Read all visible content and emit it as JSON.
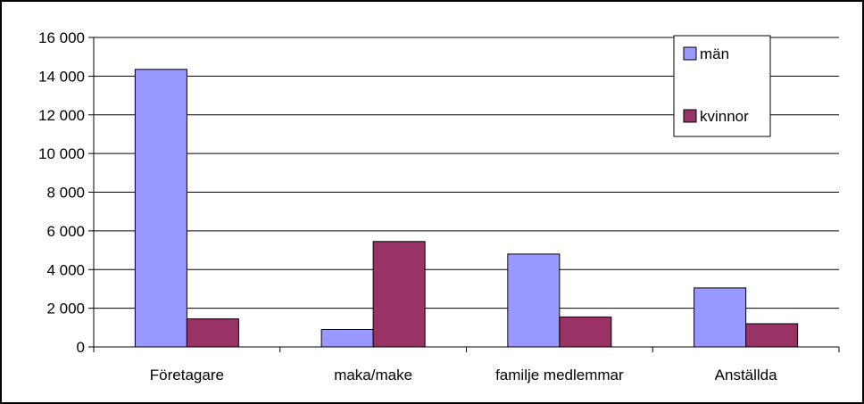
{
  "chart_data": {
    "type": "bar",
    "categories": [
      "Företagare",
      "maka/make",
      "familje medlemmar",
      "Anställda"
    ],
    "series": [
      {
        "name": "män",
        "values": [
          14350,
          900,
          4800,
          3050
        ],
        "color": "#9999ff"
      },
      {
        "name": "kvinnor",
        "values": [
          1450,
          5450,
          1550,
          1200
        ],
        "color": "#993366"
      }
    ],
    "ylim": [
      0,
      16000
    ],
    "yticks": [
      0,
      2000,
      4000,
      6000,
      8000,
      10000,
      12000,
      14000,
      16000
    ],
    "ytick_labels": [
      "0",
      "2 000",
      "4 000",
      "6 000",
      "8 000",
      "10 000",
      "12 000",
      "14 000",
      "16 000"
    ],
    "grid": true,
    "legend_position": "top-right",
    "title": "",
    "xlabel": "",
    "ylabel": ""
  }
}
